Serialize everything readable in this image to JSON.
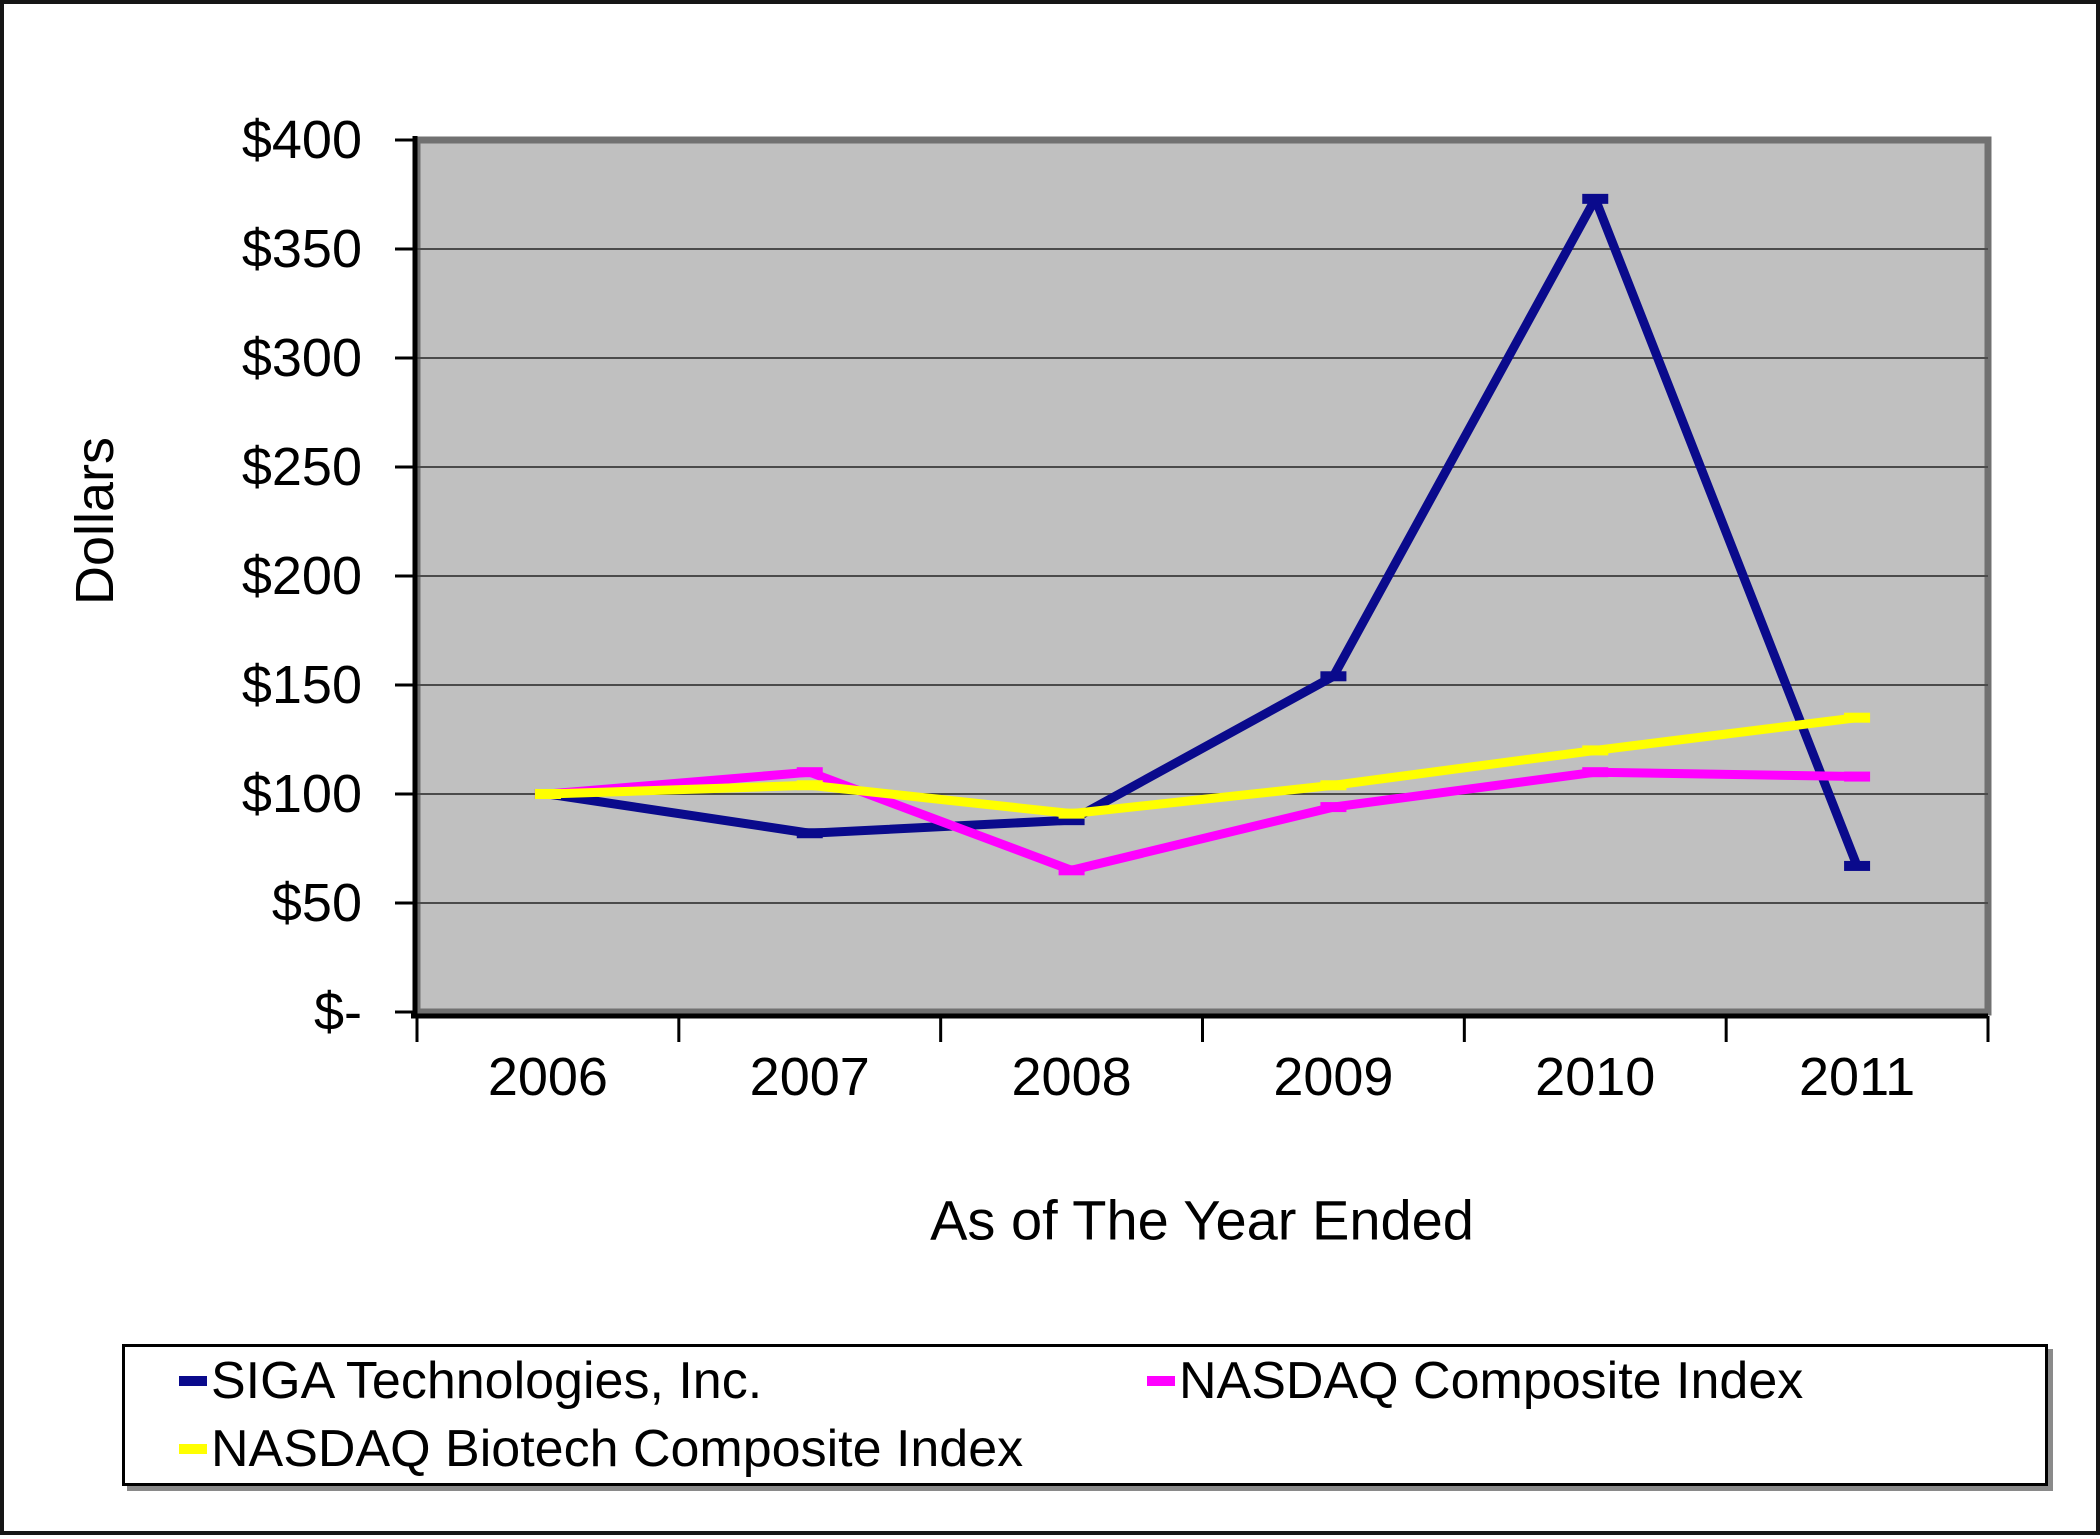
{
  "chart_data": {
    "type": "line",
    "title": "",
    "xlabel": "As of The Year Ended",
    "ylabel": "Dollars",
    "categories": [
      "2006",
      "2007",
      "2008",
      "2009",
      "2010",
      "2011"
    ],
    "series": [
      {
        "name": "SIGA Technologies, Inc.",
        "color": "#0A0A8C",
        "values": [
          100,
          82,
          88,
          154,
          373,
          67
        ]
      },
      {
        "name": "NASDAQ Composite Index",
        "color": "#FF00FF",
        "values": [
          100,
          110,
          65,
          94,
          110,
          108
        ]
      },
      {
        "name": "NASDAQ Biotech Composite Index",
        "color": "#FFFF00",
        "values": [
          100,
          104,
          91,
          104,
          120,
          135
        ]
      }
    ],
    "ylim": [
      0,
      400
    ],
    "ytick_step": 50,
    "ytick_labels": [
      "$-",
      "$50",
      "$100",
      "$150",
      "$200",
      "$250",
      "$300",
      "$350",
      "$400"
    ],
    "grid": true,
    "legend_position": "bottom",
    "colors": {
      "plot_background": "#C0C0C0",
      "gridline": "#4B4B4B",
      "plot_border": "#717171",
      "axis": "#000000",
      "text": "#000000"
    }
  }
}
